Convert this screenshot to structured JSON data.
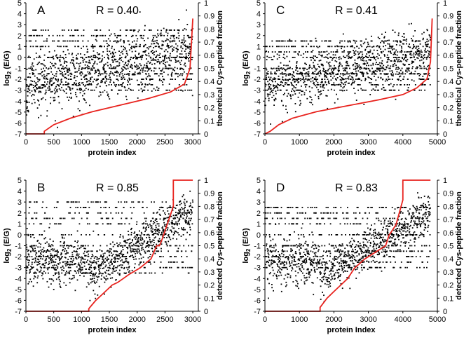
{
  "colors": {
    "points": "#000000",
    "curve": "#e8231e",
    "axis": "#000000"
  },
  "chart_data": [
    {
      "type": "scatter",
      "panel": "A",
      "r_label": "R = 0.40",
      "xlabel": "protein index",
      "ylabel_left": "log2 (E/G)",
      "ylabel_right": "theoretical Cys-peptide fraction",
      "xlim": [
        0,
        3100
      ],
      "xticks": [
        0,
        500,
        1000,
        1500,
        2000,
        2500,
        3000
      ],
      "ylim": [
        -7,
        5
      ],
      "yticks": [
        -7,
        -6,
        -5,
        -4,
        -3,
        -2,
        -1,
        0,
        1,
        2,
        3,
        4,
        5
      ],
      "y2lim": [
        0,
        1
      ],
      "y2ticks": [
        0,
        0.1,
        0.2,
        0.3,
        0.4,
        0.5,
        0.6,
        0.7,
        0.8,
        0.9,
        1
      ],
      "n_points": 3000,
      "scatter_profile": {
        "mean_start": -2.6,
        "mean_end": 0.6,
        "spread": 1.3,
        "levels": [
          -3,
          -2.5,
          -2,
          -1.5,
          -1,
          0,
          1,
          1.5,
          2,
          2.5
        ]
      },
      "fraction_curve": {
        "x": [
          0,
          330,
          330,
          500,
          800,
          1200,
          1700,
          2200,
          2600,
          2850,
          2950,
          3000
        ],
        "y": [
          0,
          0,
          0.02,
          0.07,
          0.12,
          0.17,
          0.22,
          0.27,
          0.32,
          0.38,
          0.5,
          0.88
        ]
      }
    },
    {
      "type": "scatter",
      "panel": "C",
      "r_label": "R = 0.41",
      "xlabel": "protein index",
      "ylabel_left": "log2 (E/G)",
      "ylabel_right": "theoretical Cys-peptide fraction",
      "xlim": [
        0,
        5000
      ],
      "xticks": [
        0,
        1000,
        2000,
        3000,
        4000,
        5000
      ],
      "ylim": [
        -7,
        5
      ],
      "yticks": [
        -7,
        -6,
        -5,
        -4,
        -3,
        -2,
        -1,
        0,
        1,
        2,
        3,
        4,
        5
      ],
      "y2lim": [
        0,
        1
      ],
      "y2ticks": [
        0,
        0.1,
        0.2,
        0.3,
        0.4,
        0.5,
        0.6,
        0.7,
        0.8,
        0.9,
        1
      ],
      "n_points": 4800,
      "scatter_profile": {
        "mean_start": -2.6,
        "mean_end": 0.5,
        "spread": 1.2,
        "levels": [
          -3,
          -2.5,
          -2,
          -1.5,
          -1,
          0,
          0.5,
          1,
          1.5
        ]
      },
      "fraction_curve": {
        "x": [
          0,
          150,
          400,
          800,
          1500,
          2500,
          3300,
          4000,
          4400,
          4700,
          4800,
          4850
        ],
        "y": [
          0,
          0.02,
          0.07,
          0.12,
          0.17,
          0.22,
          0.26,
          0.3,
          0.35,
          0.42,
          0.55,
          0.88
        ]
      }
    },
    {
      "type": "scatter",
      "panel": "B",
      "r_label": "R = 0.85",
      "xlabel": "protein index",
      "ylabel_left": "log2 (E/G)",
      "ylabel_right": "detected Cys-peptide fraction",
      "xlim": [
        0,
        3100
      ],
      "xticks": [
        0,
        500,
        1000,
        1500,
        2000,
        2500,
        3000
      ],
      "ylim": [
        -7,
        5
      ],
      "yticks": [
        -7,
        -6,
        -5,
        -4,
        -3,
        -2,
        -1,
        0,
        1,
        2,
        3,
        4,
        5
      ],
      "y2lim": [
        0,
        1
      ],
      "y2ticks": [
        0,
        0.1,
        0.2,
        0.3,
        0.4,
        0.5,
        0.6,
        0.7,
        0.8,
        0.9,
        1
      ],
      "n_points": 3000,
      "scatter_profile": {
        "split": 1130,
        "flat_mean": -2.5,
        "flat_spread": 1.1,
        "rise_start": -3.8,
        "rise_end": 2.2,
        "levels": [
          -3.5,
          -3,
          -2.5,
          -2,
          -1.5,
          -1,
          0,
          1,
          1.5,
          2,
          2.5,
          3
        ]
      },
      "fraction_curve": {
        "x": [
          0,
          1130,
          1130,
          1250,
          1350,
          1450,
          1550,
          1650,
          1750,
          1850,
          2050,
          2250,
          2350,
          2400,
          2450,
          2650,
          2650,
          3000
        ],
        "y": [
          0,
          0,
          0.02,
          0.08,
          0.12,
          0.16,
          0.2,
          0.22,
          0.25,
          0.28,
          0.33,
          0.4,
          0.5,
          0.5,
          0.55,
          0.8,
          1,
          1
        ]
      }
    },
    {
      "type": "scatter",
      "panel": "D",
      "r_label": "R = 0.83",
      "xlabel": "protein Index",
      "ylabel_left": "log2 (E/G)",
      "ylabel_right": "detected Cys-peptide fraction",
      "xlim": [
        0,
        5000
      ],
      "xticks": [
        0,
        1000,
        2000,
        3000,
        4000,
        5000
      ],
      "ylim": [
        -7,
        5
      ],
      "yticks": [
        -7,
        -6,
        -5,
        -4,
        -3,
        -2,
        -1,
        0,
        1,
        2,
        3,
        4,
        5
      ],
      "y2lim": [
        0,
        1
      ],
      "y2ticks": [
        0,
        0.1,
        0.2,
        0.3,
        0.4,
        0.5,
        0.6,
        0.7,
        0.8,
        0.9,
        1
      ],
      "n_points": 4800,
      "scatter_profile": {
        "split": 1600,
        "flat_mean": -2.5,
        "flat_spread": 1.1,
        "rise_start": -3.8,
        "rise_end": 2.0,
        "levels": [
          -3,
          -2.5,
          -2,
          -1.5,
          -1,
          0,
          1,
          1.5,
          2,
          2.5
        ]
      },
      "fraction_curve": {
        "x": [
          0,
          1600,
          1600,
          1800,
          2000,
          2200,
          2400,
          2600,
          2900,
          3500,
          3600,
          3800,
          4000,
          4000,
          4800
        ],
        "y": [
          0,
          0,
          0.03,
          0.1,
          0.15,
          0.2,
          0.25,
          0.33,
          0.4,
          0.5,
          0.58,
          0.66,
          0.85,
          1,
          1
        ]
      }
    }
  ]
}
